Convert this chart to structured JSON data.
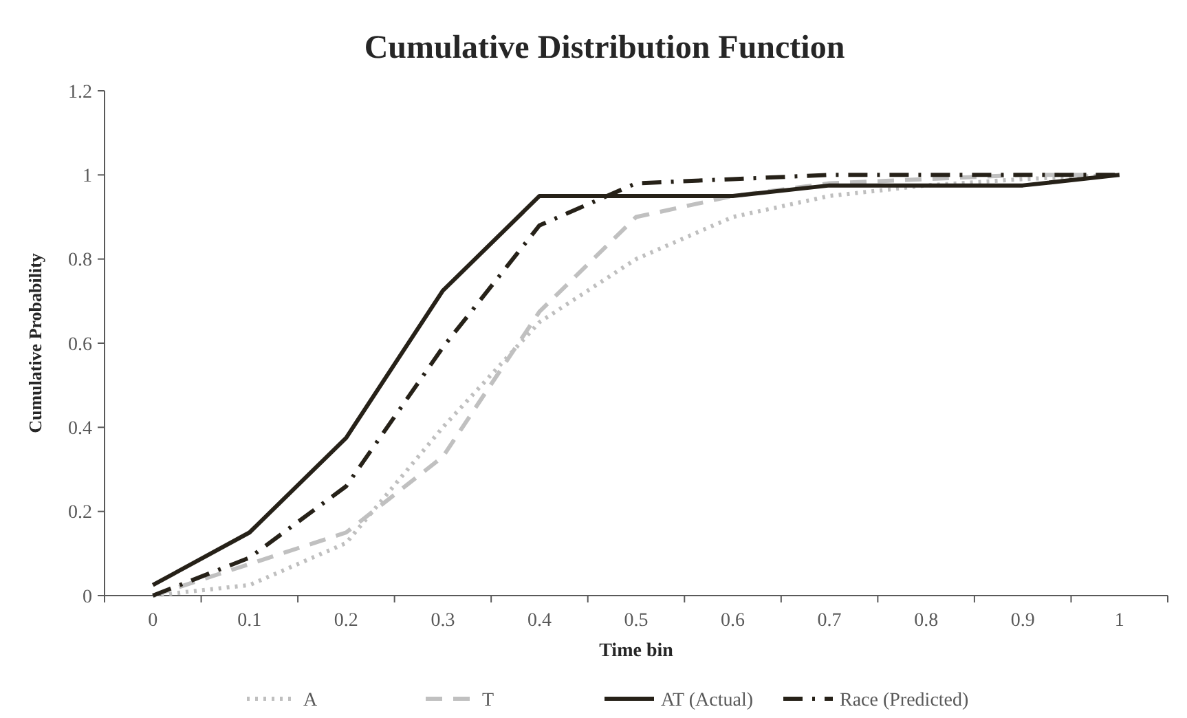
{
  "chart_data": {
    "type": "line",
    "title": "Cumulative Distribution Function",
    "xlabel": "Time bin",
    "ylabel": "Cumulative Probability",
    "categories": [
      "0",
      "0.1",
      "0.2",
      "0.3",
      "0.4",
      "0.5",
      "0.6",
      "0.7",
      "0.8",
      "0.9",
      "1"
    ],
    "series": [
      {
        "name": "A",
        "color": "#bfbfbf",
        "line_style": "dotted",
        "values": [
          0,
          0.025,
          0.125,
          0.4,
          0.65,
          0.8,
          0.9,
          0.95,
          0.975,
          0.99,
          1
        ]
      },
      {
        "name": "T",
        "color": "#c0c0c0",
        "line_style": "dashed",
        "values": [
          0,
          0.075,
          0.15,
          0.33,
          0.675,
          0.9,
          0.95,
          0.98,
          0.99,
          1,
          1
        ]
      },
      {
        "name": "AT (Actual)",
        "color": "#262118",
        "line_style": "solid",
        "values": [
          0.025,
          0.15,
          0.375,
          0.725,
          0.95,
          0.95,
          0.95,
          0.975,
          0.975,
          0.975,
          1
        ]
      },
      {
        "name": "Race (Predicted)",
        "color": "#262118",
        "line_style": "dashdot",
        "values": [
          0,
          0.09,
          0.26,
          0.59,
          0.88,
          0.98,
          0.99,
          1,
          1,
          1,
          1
        ]
      }
    ],
    "ylim": [
      0,
      1.2
    ],
    "yticks": [
      0,
      0.2,
      0.4,
      0.6,
      0.8,
      1,
      1.2
    ],
    "grid": false,
    "legend": "bottom"
  }
}
